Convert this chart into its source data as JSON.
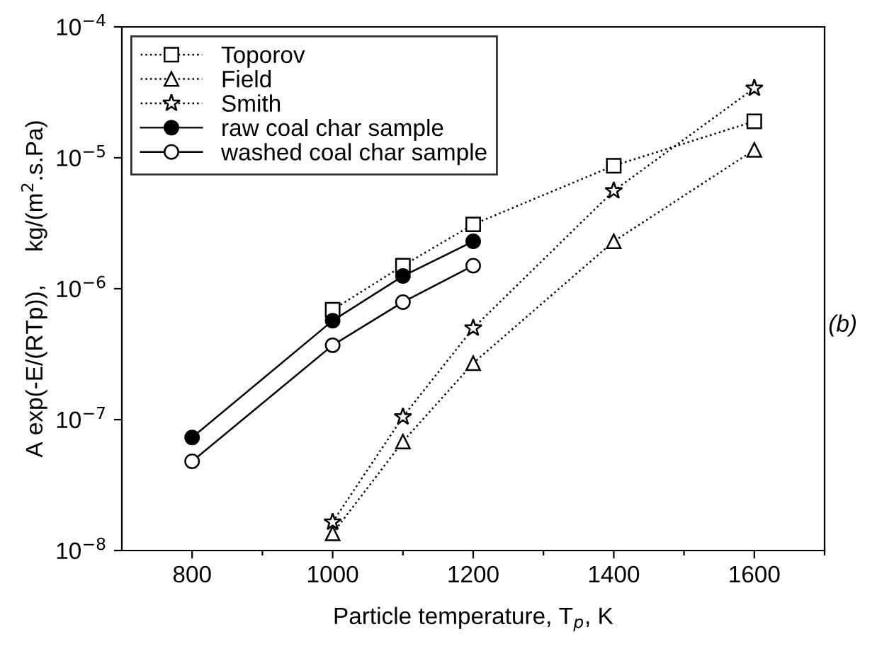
{
  "chart_data": {
    "type": "line",
    "xlabel": "Particle temperature, T$_{p}$, K",
    "ylabel": "A exp(-E/(RTp)),     kg/(m$^{2}$.s.Pa)",
    "annotations": [
      "(b)"
    ],
    "log": "y",
    "xlim": [
      700,
      1700
    ],
    "ylim": [
      1e-08,
      0.0001
    ],
    "xticks": [
      800,
      {
        "value": 900,
        "label": null
      },
      1000,
      {
        "value": 1100,
        "label": null
      },
      1200,
      {
        "value": 1300,
        "label": null
      },
      1400,
      {
        "value": 1500,
        "label": null
      },
      1600,
      {
        "value": 1700,
        "label": null
      }
    ],
    "yticks": [
      {
        "value": 1e-08,
        "label": "10$^{−8}$"
      },
      {
        "value": 1e-07,
        "label": "10$^{−7}$"
      },
      {
        "value": 1e-06,
        "label": "10$^{−6}$"
      },
      {
        "value": 1e-05,
        "label": "10$^{−5}$"
      },
      {
        "value": 0.0001,
        "label": "10$^{−4}$"
      }
    ],
    "grid": false,
    "legend": "top left",
    "series": [
      {
        "name": "Toporov",
        "color": "#000000",
        "marker": "square",
        "line_style": "dotted",
        "x": [
          1000,
          1100,
          1200,
          1400,
          1600
        ],
        "values": [
          6.9e-07,
          1.5e-06,
          3.1e-06,
          8.7e-06,
          1.9e-05
        ]
      },
      {
        "name": "Field",
        "color": "#000000",
        "marker": "triangle",
        "line_style": "dotted",
        "x": [
          1000,
          1100,
          1200,
          1400,
          1600
        ],
        "values": [
          1.35e-08,
          6.8e-08,
          2.7e-07,
          2.3e-06,
          1.15e-05
        ]
      },
      {
        "name": "Smith",
        "color": "#000000",
        "marker": "star",
        "line_style": "dotted",
        "x": [
          1000,
          1100,
          1200,
          1400,
          1600
        ],
        "values": [
          1.65e-08,
          1.05e-07,
          5e-07,
          5.6e-06,
          3.4e-05
        ]
      },
      {
        "name": "raw coal char sample",
        "color": "#000000",
        "marker": "circle",
        "colors": [
          "#000000",
          "#000000",
          "#000000",
          "#000000"
        ],
        "line_style": "solid",
        "x": [
          800,
          1000,
          1100,
          1200
        ],
        "values": [
          7.3e-08,
          5.7e-07,
          1.25e-06,
          2.3e-06
        ]
      },
      {
        "name": "washed coal char sample",
        "color": "#000000",
        "marker": "circle",
        "line_style": "solid",
        "x": [
          800,
          1000,
          1100,
          1200
        ],
        "values": [
          4.8e-08,
          3.7e-07,
          7.9e-07,
          1.5e-06
        ],
        "colors": [
          "#ffffff",
          "#ffffff",
          "#ffffff",
          "#ffffff"
        ]
      }
    ]
  }
}
